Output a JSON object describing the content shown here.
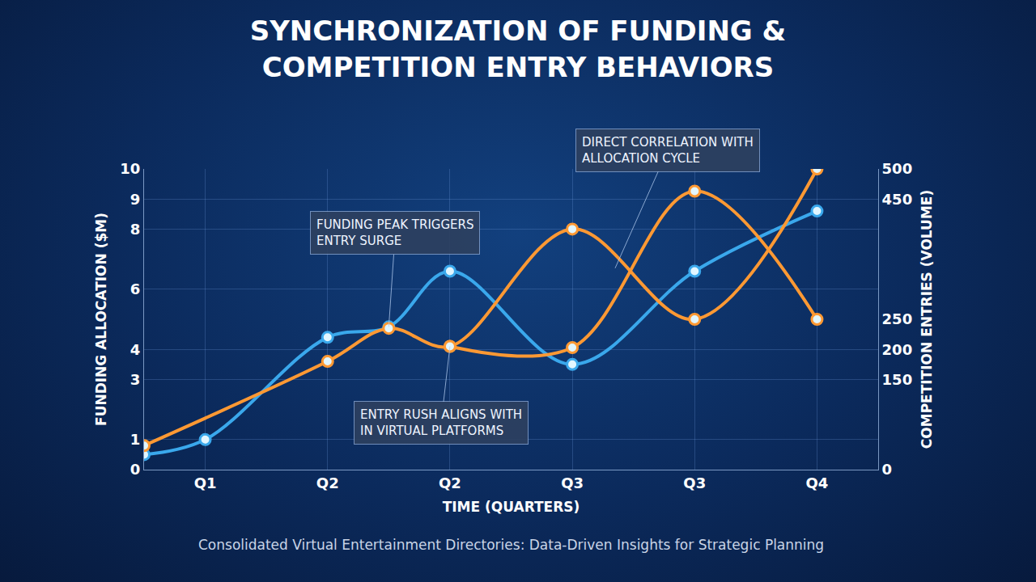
{
  "chart_data": {
    "type": "line",
    "title": "SYNCHRONIZATION OF FUNDING & COMPETITION ENTRY BEHAVIORS",
    "caption": "Consolidated Virtual Entertainment Directories: Data-Driven Insights for Strategic Planning",
    "x_label": "TIME (QUARTERS)",
    "y_label": "FUNDING ALLOCATION ($M)",
    "y2_label": "COMPETITION ENTRIES (VOLUME)",
    "xlim": [
      -0.5,
      5.5
    ],
    "xticks": [
      {
        "value": 0,
        "label": "Q1"
      },
      {
        "value": 1,
        "label": "Q2"
      },
      {
        "value": 2,
        "label": "Q2"
      },
      {
        "value": 3,
        "label": "Q3"
      },
      {
        "value": 4,
        "label": "Q3"
      },
      {
        "value": 5,
        "label": "Q4"
      }
    ],
    "ylim": [
      0,
      10
    ],
    "yticks": [
      0,
      1,
      3,
      4,
      6,
      8,
      9,
      10
    ],
    "y2lim": [
      0,
      500
    ],
    "y2ticks": [
      0,
      150,
      200,
      250,
      450,
      500
    ],
    "grid": true,
    "series": [
      {
        "color": "#3aa8ec",
        "marker": "circle",
        "line_style": "solid",
        "x": [
          -0.5,
          0,
          1,
          1.5,
          2,
          3,
          4,
          5
        ],
        "values": [
          0.5,
          1,
          4.4,
          4.75,
          6.6,
          3.5,
          6.6,
          8.6
        ]
      },
      {
        "color": "#ff9933",
        "marker": "circle",
        "line_style": "solid",
        "axis": "y2",
        "x": [
          -0.5,
          1,
          1.5,
          2,
          3,
          4,
          5
        ],
        "values": [
          40,
          180,
          235,
          205,
          400,
          250,
          500
        ]
      },
      {
        "color": "#ff9933",
        "marker": "circle",
        "line_style": "solid",
        "axis": "y2",
        "x": [
          2,
          3,
          4,
          5
        ],
        "values": [
          205,
          203,
          463,
          250
        ]
      }
    ],
    "annotations": [
      {
        "text": "FUNDING PEAK TRIGGERS ENTRY SURGE",
        "x": 1.5,
        "y": 4.75
      },
      {
        "text": "DIRECT CORRELATION WITH ALLOCATION CYCLE",
        "x": 3.35,
        "y": 6.7
      },
      {
        "text": "ENTRY RUSH ALIGNS WITH IN VIRTUAL PLATFORMS",
        "x": 2,
        "y": 205,
        "axis": "y2"
      }
    ]
  }
}
